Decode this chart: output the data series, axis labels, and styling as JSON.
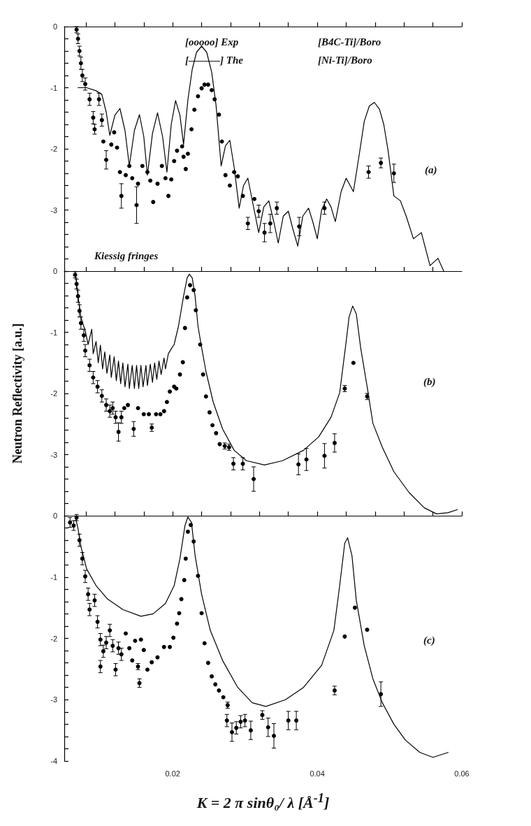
{
  "chart_data": [
    {
      "type": "scatter",
      "xlim": [
        0.005,
        0.06
      ],
      "ylim": [
        -4,
        0
      ],
      "tick_labels": "y",
      "xticks": [
        {
          "value": 0.008,
          "label": null
        },
        {
          "value": 0.012,
          "label": null
        },
        {
          "value": 0.016,
          "label": null
        },
        0.02,
        {
          "value": 0.024,
          "label": null
        },
        {
          "value": 0.028,
          "label": null
        },
        {
          "value": 0.032,
          "label": null
        },
        {
          "value": 0.036,
          "label": null
        },
        0.04,
        {
          "value": 0.044,
          "label": null
        },
        {
          "value": 0.048,
          "label": null
        },
        {
          "value": 0.052,
          "label": null
        },
        {
          "value": 0.056,
          "label": null
        },
        0.06
      ],
      "yticks": [
        {
          "value": -4,
          "label": null
        },
        {
          "value": -3.8,
          "label": null
        },
        {
          "value": -3.6,
          "label": null
        },
        {
          "value": -3.4,
          "label": null
        },
        {
          "value": -3.2,
          "label": null
        },
        -3,
        {
          "value": -2.8,
          "label": null
        },
        {
          "value": -2.6,
          "label": null
        },
        {
          "value": -2.4,
          "label": null
        },
        {
          "value": -2.2,
          "label": null
        },
        -2,
        {
          "value": -1.8,
          "label": null
        },
        {
          "value": -1.6,
          "label": null
        },
        {
          "value": -1.4,
          "label": null
        },
        {
          "value": -1.2,
          "label": null
        },
        -1,
        {
          "value": -0.8,
          "label": null
        },
        {
          "value": -0.6,
          "label": null
        },
        {
          "value": -0.4,
          "label": null
        },
        {
          "value": -0.2,
          "label": null
        },
        0
      ],
      "annotations": [
        "[ooooo] Exp",
        "[———] The",
        "[B4C-Ti]/Boro",
        "[Ni-Ti]/Boro",
        "(a)",
        "Kiessig fringes"
      ],
      "series": [
        {
          "type": "line",
          "color": "#000000",
          "marker": "none",
          "line_style": "solid",
          "x": [
            0.0069,
            0.0081,
            0.0094,
            0.0102,
            0.0108,
            0.0113,
            0.012,
            0.0127,
            0.0134,
            0.014,
            0.0147,
            0.0154,
            0.016,
            0.0165,
            0.0172,
            0.0179,
            0.0186,
            0.0192,
            0.0198,
            0.0204,
            0.021,
            0.0215,
            0.0221,
            0.0227,
            0.0233,
            0.024,
            0.0247,
            0.0254,
            0.026,
            0.0267,
            0.0273,
            0.0279,
            0.0285,
            0.0292,
            0.0298,
            0.0304,
            0.0311,
            0.0319,
            0.0326,
            0.0333,
            0.034,
            0.0346,
            0.0353,
            0.036,
            0.0366,
            0.0373,
            0.038,
            0.0388,
            0.0394,
            0.04,
            0.0406,
            0.0413,
            0.0419,
            0.0425,
            0.0433,
            0.044,
            0.045,
            0.0458,
            0.0465,
            0.0472,
            0.0479,
            0.0486,
            0.0492,
            0.0498,
            0.0506,
            0.0515,
            0.0523,
            0.0533,
            0.0544,
            0.0556,
            0.0567,
            0.0575
          ],
          "values": [
            -1.0,
            -1.0,
            -1.05,
            -1.11,
            -1.4,
            -1.78,
            -1.45,
            -1.34,
            -1.7,
            -2.28,
            -1.7,
            -1.44,
            -1.8,
            -2.43,
            -1.75,
            -1.41,
            -1.8,
            -2.38,
            -1.6,
            -1.21,
            -1.45,
            -1.93,
            -1.2,
            -0.7,
            -0.42,
            -0.32,
            -0.42,
            -0.75,
            -1.29,
            -2.28,
            -1.95,
            -1.86,
            -2.3,
            -2.97,
            -2.6,
            -2.48,
            -2.9,
            -3.37,
            -2.95,
            -2.85,
            -3.2,
            -3.54,
            -3.1,
            -3.02,
            -3.3,
            -3.59,
            -3.1,
            -2.97,
            -3.2,
            -3.47,
            -3.0,
            -2.82,
            -2.95,
            -3.19,
            -2.7,
            -2.48,
            -2.7,
            -2.1,
            -1.55,
            -1.3,
            -1.24,
            -1.35,
            -1.6,
            -2.03,
            -2.77,
            -2.85,
            -3.1,
            -3.47,
            -3.37,
            -3.91,
            -3.79,
            -4.0
          ]
        },
        {
          "color": "#000000",
          "marker": "circle",
          "x": [
            0.0067,
            0.0069,
            0.0071,
            0.0073,
            0.0075,
            0.0079,
            0.0085,
            0.009,
            0.0092,
            0.0098,
            0.0102,
            0.0104,
            0.0108,
            0.0115,
            0.0119,
            0.0123,
            0.0127,
            0.0129,
            0.0135,
            0.014,
            0.0144,
            0.015,
            0.0152,
            0.0158,
            0.0165,
            0.0169,
            0.0173,
            0.0179,
            0.0185,
            0.019,
            0.0194,
            0.0198,
            0.0202,
            0.0206,
            0.0213,
            0.0215,
            0.0218,
            0.0221,
            0.0226,
            0.023,
            0.0235,
            0.024,
            0.0244,
            0.0249,
            0.0254,
            0.0258,
            0.0264,
            0.0268,
            0.0273,
            0.0279,
            0.0285,
            0.029,
            0.0297,
            0.0304,
            0.0313,
            0.0319,
            0.0327,
            0.0335,
            0.0344,
            0.0375,
            0.041,
            0.0471,
            0.0488,
            0.0506
          ],
          "values": [
            -0.05,
            -0.2,
            -0.4,
            -0.6,
            -0.8,
            -0.94,
            -1.19,
            -1.49,
            -1.68,
            -1.19,
            -1.53,
            -1.88,
            -2.18,
            -1.93,
            -1.73,
            -1.98,
            -2.38,
            -2.77,
            -2.43,
            -2.28,
            -2.48,
            -2.92,
            -2.57,
            -2.28,
            -2.38,
            -2.52,
            -2.87,
            -2.57,
            -2.28,
            -2.48,
            -2.77,
            -2.5,
            -2.2,
            -2.03,
            -1.96,
            -2.13,
            -2.33,
            -2.08,
            -1.68,
            -1.36,
            -1.14,
            -1.01,
            -0.95,
            -0.95,
            -1.04,
            -1.19,
            -1.44,
            -1.88,
            -2.43,
            -2.6,
            -2.38,
            -2.45,
            -2.77,
            -3.22,
            -2.82,
            -3.02,
            -3.37,
            -3.22,
            -2.97,
            -3.27,
            -2.97,
            -2.38,
            -2.23,
            -2.4
          ],
          "errors": [
            0.05,
            0.08,
            0.08,
            0.1,
            0.1,
            0.1,
            0.1,
            0.1,
            0.08,
            0.1,
            0.1,
            null,
            0.15,
            null,
            null,
            null,
            null,
            0.2,
            null,
            null,
            null,
            0.3,
            null,
            null,
            null,
            null,
            null,
            null,
            null,
            null,
            null,
            null,
            null,
            null,
            null,
            null,
            null,
            null,
            null,
            null,
            null,
            null,
            null,
            null,
            null,
            null,
            null,
            null,
            null,
            null,
            null,
            null,
            null,
            0.1,
            null,
            0.1,
            0.15,
            0.15,
            0.1,
            0.15,
            0.1,
            0.1,
            0.08,
            0.15
          ]
        }
      ]
    },
    {
      "type": "scatter",
      "xlim": [
        0.005,
        0.06
      ],
      "ylim": [
        -4,
        0
      ],
      "tick_labels": "y",
      "ylabel": "Neutron Reflectivity [a.u.]",
      "xticks": [
        {
          "value": 0.008,
          "label": null
        },
        {
          "value": 0.012,
          "label": null
        },
        {
          "value": 0.016,
          "label": null
        },
        {
          "value": 0.02,
          "label": null
        },
        {
          "value": 0.024,
          "label": null
        },
        {
          "value": 0.028,
          "label": null
        },
        {
          "value": 0.032,
          "label": null
        },
        {
          "value": 0.036,
          "label": null
        },
        {
          "value": 0.04,
          "label": null
        },
        {
          "value": 0.044,
          "label": null
        },
        {
          "value": 0.048,
          "label": null
        },
        {
          "value": 0.052,
          "label": null
        },
        {
          "value": 0.056,
          "label": null
        }
      ],
      "yticks": [
        {
          "value": -4,
          "label": null
        },
        {
          "value": -3.8,
          "label": null
        },
        {
          "value": -3.6,
          "label": null
        },
        {
          "value": -3.4,
          "label": null
        },
        {
          "value": -3.2,
          "label": null
        },
        -3,
        {
          "value": -2.8,
          "label": null
        },
        {
          "value": -2.6,
          "label": null
        },
        {
          "value": -2.4,
          "label": null
        },
        {
          "value": -2.2,
          "label": null
        },
        -2,
        {
          "value": -1.8,
          "label": null
        },
        {
          "value": -1.6,
          "label": null
        },
        {
          "value": -1.4,
          "label": null
        },
        {
          "value": -1.2,
          "label": null
        },
        -1,
        {
          "value": -0.8,
          "label": null
        },
        {
          "value": -0.6,
          "label": null
        },
        {
          "value": -0.4,
          "label": null
        },
        {
          "value": -0.2,
          "label": null
        },
        0
      ],
      "annotations": [
        "(b)"
      ],
      "series": [
        {
          "type": "line",
          "color": "#000000",
          "marker": "none",
          "line_style": "solid",
          "x": [
            0.0065,
            0.0069,
            0.0073,
            0.0079,
            0.0083,
            0.0088,
            0.009,
            0.0094,
            0.0097,
            0.01,
            0.0103,
            0.0106,
            0.0109,
            0.0113,
            0.0115,
            0.0119,
            0.0122,
            0.0125,
            0.0128,
            0.0131,
            0.0134,
            0.0138,
            0.014,
            0.0144,
            0.0147,
            0.015,
            0.0153,
            0.0156,
            0.0159,
            0.0163,
            0.0165,
            0.0169,
            0.0172,
            0.0175,
            0.0178,
            0.0181,
            0.0184,
            0.0188,
            0.019,
            0.0194,
            0.0198,
            0.0202,
            0.0208,
            0.0215,
            0.022,
            0.0223,
            0.0227,
            0.0231,
            0.0235,
            0.024,
            0.0246,
            0.0256,
            0.0269,
            0.0285,
            0.0302,
            0.0327,
            0.0352,
            0.0381,
            0.0402,
            0.0419,
            0.0431,
            0.044,
            0.0444,
            0.0449,
            0.0454,
            0.046,
            0.0469,
            0.0477,
            0.049,
            0.0506,
            0.0527,
            0.0548,
            0.0565,
            0.0581,
            0.0594
          ],
          "values": [
            0,
            -0.41,
            -0.75,
            -0.98,
            -1.2,
            -0.95,
            -1.35,
            -1.15,
            -1.5,
            -1.21,
            -1.6,
            -1.32,
            -1.67,
            -1.37,
            -1.74,
            -1.4,
            -1.79,
            -1.47,
            -1.84,
            -1.5,
            -1.89,
            -1.52,
            -1.92,
            -1.54,
            -1.92,
            -1.54,
            -1.92,
            -1.54,
            -1.89,
            -1.54,
            -1.87,
            -1.52,
            -1.82,
            -1.5,
            -1.77,
            -1.47,
            -1.69,
            -1.42,
            -1.6,
            -1.35,
            -1.27,
            -1.2,
            -0.9,
            -0.41,
            -0.11,
            -0.05,
            -0.11,
            -0.41,
            -0.9,
            -1.25,
            -1.64,
            -2.14,
            -2.58,
            -2.93,
            -3.1,
            -3.17,
            -3.1,
            -2.93,
            -2.71,
            -2.39,
            -1.99,
            -1.15,
            -0.75,
            -0.57,
            -0.7,
            -1.25,
            -1.89,
            -2.49,
            -2.88,
            -3.28,
            -3.62,
            -3.87,
            -3.97,
            -3.95,
            -3.9
          ]
        },
        {
          "color": "#000000",
          "marker": "circle",
          "x": [
            0.0065,
            0.0067,
            0.0069,
            0.0071,
            0.0073,
            0.0077,
            0.0079,
            0.0085,
            0.009,
            0.0096,
            0.0102,
            0.0108,
            0.0113,
            0.0117,
            0.0121,
            0.0125,
            0.0129,
            0.0133,
            0.0138,
            0.0146,
            0.0152,
            0.016,
            0.0167,
            0.0171,
            0.0177,
            0.0183,
            0.0188,
            0.0192,
            0.0196,
            0.0202,
            0.0205,
            0.021,
            0.0214,
            0.0217,
            0.022,
            0.0224,
            0.0229,
            0.0232,
            0.0238,
            0.0242,
            0.0246,
            0.0251,
            0.0255,
            0.026,
            0.0265,
            0.0272,
            0.0278,
            0.0284,
            0.0297,
            0.0312,
            0.0374,
            0.0385,
            0.041,
            0.0424,
            0.0438,
            0.045,
            0.0469
          ],
          "values": [
            -0.06,
            -0.21,
            -0.41,
            -0.65,
            -0.85,
            -1.05,
            -1.3,
            -1.54,
            -1.74,
            -1.89,
            -2.04,
            -2.19,
            -2.29,
            -2.24,
            -2.39,
            -2.63,
            -2.39,
            -2.24,
            -2.19,
            -2.58,
            -2.24,
            -2.34,
            -2.34,
            -2.56,
            -2.34,
            -2.34,
            -2.29,
            -2.14,
            -1.97,
            -1.89,
            -1.92,
            -1.69,
            -1.49,
            -0.93,
            -0.43,
            -0.23,
            -0.31,
            -0.64,
            -1.2,
            -1.69,
            -2.05,
            -2.31,
            -2.52,
            -2.65,
            -2.83,
            -2.86,
            -2.88,
            -3.15,
            -3.15,
            -3.4,
            -3.16,
            -3.08,
            -3.02,
            -2.81,
            -1.92,
            -1.5,
            -2.05
          ],
          "errors": [
            0.05,
            0.08,
            0.1,
            0.1,
            0.1,
            0.1,
            0.1,
            0.1,
            0.1,
            0.1,
            0.1,
            0.1,
            0.1,
            0.1,
            0.1,
            0.15,
            0.1,
            null,
            null,
            0.12,
            null,
            null,
            null,
            0.06,
            null,
            null,
            null,
            null,
            null,
            null,
            null,
            null,
            null,
            null,
            null,
            null,
            null,
            null,
            null,
            null,
            null,
            null,
            null,
            null,
            null,
            0.05,
            0.05,
            0.1,
            0.1,
            0.2,
            0.17,
            0.18,
            0.2,
            0.15,
            0.05,
            null,
            0.05
          ]
        }
      ]
    },
    {
      "type": "scatter",
      "xlim": [
        0.005,
        0.06
      ],
      "ylim": [
        -4,
        0
      ],
      "xlabel": "K = 2 π sinθ₀/ λ [Å$^{-1}$]",
      "xticks": [
        {
          "value": 0.008,
          "label": null
        },
        {
          "value": 0.012,
          "label": null
        },
        {
          "value": 0.016,
          "label": null
        },
        0.02,
        {
          "value": 0.024,
          "label": null
        },
        {
          "value": 0.028,
          "label": null
        },
        {
          "value": 0.032,
          "label": null
        },
        {
          "value": 0.036,
          "label": null
        },
        0.04,
        {
          "value": 0.044,
          "label": null
        },
        {
          "value": 0.048,
          "label": null
        },
        {
          "value": 0.052,
          "label": null
        },
        {
          "value": 0.056,
          "label": null
        },
        0.06
      ],
      "yticks": [
        -4,
        {
          "value": -3.8,
          "label": null
        },
        {
          "value": -3.6,
          "label": null
        },
        {
          "value": -3.4,
          "label": null
        },
        {
          "value": -3.2,
          "label": null
        },
        -3,
        {
          "value": -2.8,
          "label": null
        },
        {
          "value": -2.6,
          "label": null
        },
        {
          "value": -2.4,
          "label": null
        },
        {
          "value": -2.2,
          "label": null
        },
        -2,
        {
          "value": -1.8,
          "label": null
        },
        {
          "value": -1.6,
          "label": null
        },
        {
          "value": -1.4,
          "label": null
        },
        {
          "value": -1.2,
          "label": null
        },
        -1,
        {
          "value": -0.8,
          "label": null
        },
        {
          "value": -0.6,
          "label": null
        },
        {
          "value": -0.4,
          "label": null
        },
        {
          "value": -0.2,
          "label": null
        },
        0
      ],
      "annotations": [
        "(c)"
      ],
      "series": [
        {
          "type": "line",
          "color": "#000000",
          "marker": "none",
          "line_style": "solid",
          "x": [
            0.0065,
            0.0069,
            0.0073,
            0.0081,
            0.0094,
            0.011,
            0.0131,
            0.0156,
            0.0173,
            0.019,
            0.0202,
            0.021,
            0.0217,
            0.0221,
            0.0226,
            0.0231,
            0.024,
            0.0252,
            0.0269,
            0.029,
            0.031,
            0.0329,
            0.0356,
            0.0381,
            0.0406,
            0.0423,
            0.0431,
            0.0438,
            0.0442,
            0.0448,
            0.0454,
            0.0465,
            0.0477,
            0.049,
            0.0506,
            0.0522,
            0.0542,
            0.056,
            0.0581
          ],
          "values": [
            0,
            -0.21,
            -0.5,
            -0.87,
            -1.14,
            -1.36,
            -1.53,
            -1.64,
            -1.6,
            -1.43,
            -1.14,
            -0.7,
            -0.16,
            -0.02,
            -0.11,
            -0.65,
            -1.28,
            -1.87,
            -2.36,
            -2.8,
            -3.05,
            -3.11,
            -3.0,
            -2.8,
            -2.44,
            -1.87,
            -1.14,
            -0.45,
            -0.36,
            -0.65,
            -1.38,
            -2.12,
            -2.66,
            -3.05,
            -3.4,
            -3.66,
            -3.86,
            -3.94,
            -3.86
          ]
        },
        {
          "color": "#000000",
          "marker": "circle",
          "x": [
            0.0058,
            0.0063,
            0.0067,
            0.0071,
            0.0075,
            0.0079,
            0.0083,
            0.0085,
            0.0092,
            0.0096,
            0.01,
            0.01,
            0.0104,
            0.0108,
            0.0113,
            0.0117,
            0.0121,
            0.0125,
            0.0129,
            0.0135,
            0.014,
            0.0144,
            0.0148,
            0.0152,
            0.0154,
            0.0156,
            0.016,
            0.0165,
            0.0171,
            0.0179,
            0.0188,
            0.0196,
            0.0201,
            0.0206,
            0.0209,
            0.0212,
            0.0216,
            0.0218,
            0.0221,
            0.0225,
            0.0229,
            0.0235,
            0.024,
            0.0244,
            0.0249,
            0.0254,
            0.0259,
            0.0264,
            0.027,
            0.0276,
            0.0275,
            0.0282,
            0.0288,
            0.0294,
            0.03,
            0.0308,
            0.0324,
            0.0332,
            0.034,
            0.036,
            0.0371,
            0.0424,
            0.0438,
            0.0452,
            0.0469,
            0.0488
          ],
          "values": [
            -0.11,
            -0.16,
            -0.03,
            -0.4,
            -0.7,
            -0.99,
            -1.28,
            -1.53,
            -1.38,
            -1.73,
            -2.02,
            -2.46,
            -2.21,
            -2.07,
            -1.87,
            -2.12,
            -2.51,
            -2.16,
            -2.26,
            -1.92,
            -2.16,
            -2.36,
            -2.04,
            -2.46,
            -2.73,
            -2.02,
            -2.19,
            -2.51,
            -2.39,
            -2.31,
            -2.14,
            -2.14,
            -1.99,
            -1.76,
            -1.59,
            -1.36,
            -1.05,
            -0.7,
            -0.26,
            -0.15,
            -0.42,
            -0.98,
            -1.59,
            -2.08,
            -2.4,
            -2.62,
            -2.75,
            -2.85,
            -2.96,
            -3.09,
            -3.34,
            -3.53,
            -3.46,
            -3.36,
            -3.34,
            -3.5,
            -3.25,
            -3.45,
            -3.59,
            -3.34,
            -3.34,
            -2.85,
            -1.97,
            -1.5,
            -1.86,
            -2.91
          ],
          "errors": [
            0.08,
            0.08,
            0.05,
            0.1,
            0.1,
            0.1,
            0.1,
            0.1,
            0.1,
            0.1,
            0.1,
            0.1,
            0.1,
            0.1,
            0.1,
            0.1,
            0.1,
            0.1,
            0.1,
            null,
            null,
            null,
            null,
            0.05,
            0.07,
            null,
            null,
            null,
            null,
            null,
            null,
            null,
            null,
            null,
            null,
            null,
            null,
            null,
            null,
            null,
            null,
            null,
            null,
            null,
            null,
            null,
            null,
            null,
            null,
            0.05,
            0.1,
            0.15,
            0.1,
            0.1,
            0.1,
            0.15,
            0.07,
            0.15,
            0.2,
            0.15,
            0.15,
            0.07,
            null,
            null,
            null,
            0.2
          ]
        }
      ]
    }
  ]
}
